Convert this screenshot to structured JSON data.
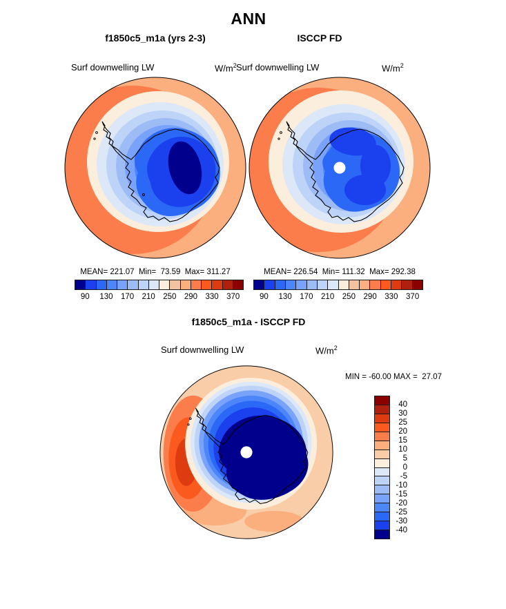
{
  "page": {
    "season_title": "ANN"
  },
  "panels": {
    "model": {
      "title": "f1850c5_m1a (yrs 2-3)",
      "variable": "Surf downwelling LW",
      "units_base": "W/m",
      "units_exp": "2",
      "stats_line": "MEAN= 221.07  Min=  73.59  Max= 311.27"
    },
    "obs": {
      "title": "ISCCP FD",
      "variable": "Surf downwelling LW",
      "units_base": "W/m",
      "units_exp": "2",
      "stats_line": "MEAN= 226.54  Min= 111.32  Max= 292.38"
    },
    "diff": {
      "title": "f1850c5_m1a - ISCCP FD",
      "variable": "Surf downwelling LW",
      "units_base": "W/m",
      "units_exp": "2",
      "minmax_line": "MIN = -60.00 MAX =  27.07"
    }
  },
  "colorbars": {
    "main_cells": [
      "#00008C",
      "#1B40EE",
      "#2B68F5",
      "#4D86F8",
      "#79A3FA",
      "#9DBCF5",
      "#BDD3F7",
      "#DCE8F7",
      "#FCEEDC",
      "#F2C3A0",
      "#FBAE7E",
      "#FA7D4B",
      "#FB5A1E",
      "#DF3B10",
      "#B0200F",
      "#8B0000"
    ],
    "main_ticks": [
      "90",
      "130",
      "170",
      "210",
      "250",
      "290",
      "330",
      "370"
    ],
    "diff_cells": [
      "#8B0000",
      "#B0200F",
      "#DF3B10",
      "#FB5A1E",
      "#FA7D4B",
      "#FBAE7E",
      "#F9CDA8",
      "#FCEEDC",
      "#DCE8F7",
      "#BDD3F7",
      "#9DBCF5",
      "#79A3FA",
      "#4D86F8",
      "#2B68F5",
      "#1B40EE",
      "#00008C"
    ],
    "diff_ticks": [
      "40",
      "30",
      "25",
      "20",
      "15",
      "10",
      "5",
      "0",
      "-5",
      "-10",
      "-15",
      "-20",
      "-25",
      "-30",
      "-40"
    ],
    "missing_data_color": "#FFFFFF",
    "coastline_color": "#000000"
  },
  "chart_data": [
    {
      "type": "heatmap",
      "panel": "model",
      "projection": "south_polar_stereographic",
      "season": "ANN",
      "title": "f1850c5_m1a (yrs 2-3)",
      "variable": "Surf downwelling LW",
      "units": "W/m^2",
      "mean": 221.07,
      "min": 73.59,
      "max": 311.27,
      "contour_levels": [
        90,
        110,
        130,
        150,
        170,
        190,
        210,
        230,
        250,
        270,
        290,
        310,
        330,
        350,
        370
      ],
      "colorbar_tick_labels": [
        90,
        130,
        170,
        210,
        250,
        290,
        330,
        370
      ],
      "colorbar_orientation": "horizontal"
    },
    {
      "type": "heatmap",
      "panel": "observation",
      "projection": "south_polar_stereographic",
      "season": "ANN",
      "title": "ISCCP FD",
      "variable": "Surf downwelling LW",
      "units": "W/m^2",
      "mean": 226.54,
      "min": 111.32,
      "max": 292.38,
      "contour_levels": [
        90,
        110,
        130,
        150,
        170,
        190,
        210,
        230,
        250,
        270,
        290,
        310,
        330,
        350,
        370
      ],
      "colorbar_tick_labels": [
        90,
        130,
        170,
        210,
        250,
        290,
        330,
        370
      ],
      "colorbar_orientation": "horizontal"
    },
    {
      "type": "heatmap",
      "panel": "difference",
      "projection": "south_polar_stereographic",
      "season": "ANN",
      "title": "f1850c5_m1a - ISCCP FD",
      "variable": "Surf downwelling LW",
      "units": "W/m^2",
      "min": -60.0,
      "max": 27.07,
      "contour_levels": [
        -40,
        -30,
        -25,
        -20,
        -15,
        -10,
        -5,
        0,
        5,
        10,
        15,
        20,
        25,
        30,
        40
      ],
      "colorbar_tick_labels": [
        40,
        30,
        25,
        20,
        15,
        10,
        5,
        0,
        -5,
        -10,
        -15,
        -20,
        -25,
        -30,
        -40
      ],
      "colorbar_orientation": "vertical"
    }
  ]
}
